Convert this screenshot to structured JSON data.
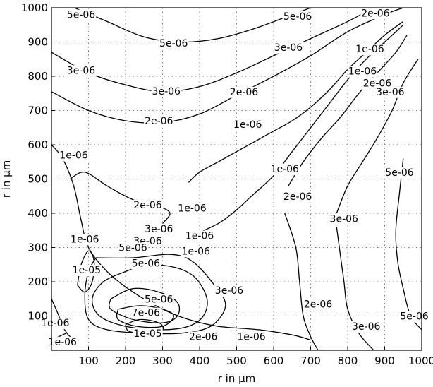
{
  "chart_data": {
    "type": "contour",
    "xlabel": "r in μm",
    "ylabel": "r in μm",
    "xlim": [
      0,
      1000
    ],
    "ylim": [
      0,
      1000
    ],
    "grid": true,
    "xticks": [
      100,
      200,
      300,
      400,
      500,
      600,
      700,
      800,
      900,
      1000
    ],
    "yticks": [
      100,
      200,
      300,
      400,
      500,
      600,
      700,
      800,
      900,
      1000
    ],
    "contours": [
      {
        "level": "5e-06",
        "points": [
          [
            62,
            1000
          ],
          [
            150,
            960
          ],
          [
            250,
            915
          ],
          [
            350,
            900
          ],
          [
            450,
            910
          ],
          [
            550,
            940
          ],
          [
            650,
            980
          ],
          [
            700,
            1000
          ]
        ]
      },
      {
        "level": "3e-06",
        "points": [
          [
            0,
            870
          ],
          [
            100,
            810
          ],
          [
            200,
            775
          ],
          [
            300,
            755
          ],
          [
            400,
            770
          ],
          [
            500,
            810
          ],
          [
            600,
            860
          ],
          [
            700,
            910
          ],
          [
            800,
            960
          ],
          [
            870,
            1000
          ]
        ]
      },
      {
        "level": "2e-06",
        "points": [
          [
            0,
            755
          ],
          [
            100,
            700
          ],
          [
            200,
            670
          ],
          [
            300,
            665
          ],
          [
            400,
            690
          ],
          [
            500,
            745
          ],
          [
            600,
            800
          ],
          [
            700,
            860
          ],
          [
            800,
            930
          ],
          [
            900,
            980
          ],
          [
            950,
            1000
          ]
        ]
      },
      {
        "level": "1e-06",
        "points": [
          [
            0,
            600
          ],
          [
            30,
            560
          ],
          [
            60,
            480
          ],
          [
            80,
            380
          ],
          [
            100,
            300
          ],
          [
            150,
            230
          ],
          [
            220,
            170
          ],
          [
            300,
            120
          ],
          [
            370,
            90
          ],
          [
            450,
            70
          ],
          [
            560,
            60
          ],
          [
            650,
            45
          ],
          [
            700,
            30
          ]
        ]
      },
      {
        "level": "1e-06",
        "points": [
          [
            370,
            490
          ],
          [
            400,
            520
          ],
          [
            450,
            550
          ],
          [
            500,
            580
          ],
          [
            550,
            610
          ],
          [
            600,
            640
          ],
          [
            650,
            670
          ],
          [
            700,
            710
          ],
          [
            750,
            760
          ],
          [
            800,
            820
          ],
          [
            850,
            870
          ],
          [
            900,
            920
          ],
          [
            950,
            960
          ]
        ]
      },
      {
        "level": "1e-06",
        "points": [
          [
            370,
            330
          ],
          [
            450,
            370
          ],
          [
            500,
            410
          ],
          [
            540,
            450
          ],
          [
            600,
            510
          ],
          [
            650,
            580
          ],
          [
            700,
            650
          ],
          [
            750,
            720
          ],
          [
            800,
            790
          ],
          [
            850,
            850
          ],
          [
            900,
            900
          ],
          [
            950,
            950
          ]
        ]
      },
      {
        "level": "2e-06",
        "points": [
          [
            50,
            500
          ],
          [
            90,
            520
          ],
          [
            150,
            480
          ],
          [
            220,
            440
          ],
          [
            290,
            420
          ],
          [
            320,
            400
          ],
          [
            300,
            370
          ]
        ]
      },
      {
        "level": "2e-06",
        "points": [
          [
            630,
            400
          ],
          [
            660,
            300
          ],
          [
            670,
            200
          ],
          [
            680,
            100
          ],
          [
            700,
            40
          ],
          [
            720,
            0
          ]
        ]
      },
      {
        "level": "2e-06",
        "points": [
          [
            640,
            480
          ],
          [
            680,
            550
          ],
          [
            730,
            620
          ],
          [
            780,
            680
          ],
          [
            830,
            750
          ],
          [
            880,
            810
          ],
          [
            930,
            870
          ],
          [
            960,
            920
          ]
        ]
      },
      {
        "level": "3e-06",
        "points": [
          [
            770,
            360
          ],
          [
            780,
            280
          ],
          [
            790,
            200
          ],
          [
            800,
            120
          ],
          [
            830,
            50
          ],
          [
            870,
            0
          ]
        ]
      },
      {
        "level": "3e-06",
        "points": [
          [
            770,
            400
          ],
          [
            800,
            480
          ],
          [
            840,
            550
          ],
          [
            880,
            620
          ],
          [
            920,
            700
          ],
          [
            950,
            780
          ],
          [
            990,
            850
          ]
        ]
      },
      {
        "level": "5e-06",
        "points": [
          [
            950,
            560
          ],
          [
            940,
            460
          ],
          [
            930,
            350
          ],
          [
            935,
            260
          ],
          [
            950,
            180
          ],
          [
            970,
            100
          ],
          [
            1000,
            60
          ]
        ]
      },
      {
        "level": "1e-05",
        "points": [
          [
            70,
            190
          ],
          [
            80,
            250
          ],
          [
            100,
            290
          ],
          [
            115,
            260
          ],
          [
            110,
            200
          ],
          [
            90,
            170
          ],
          [
            70,
            190
          ]
        ]
      },
      {
        "level": "5e-06",
        "points": [
          [
            160,
            150
          ],
          [
            220,
            180
          ],
          [
            290,
            170
          ],
          [
            340,
            140
          ],
          [
            340,
            100
          ],
          [
            300,
            80
          ],
          [
            220,
            90
          ],
          [
            160,
            120
          ],
          [
            160,
            150
          ]
        ]
      },
      {
        "level": "7e-06",
        "points": [
          [
            180,
            120
          ],
          [
            240,
            130
          ],
          [
            300,
            120
          ],
          [
            330,
            100
          ],
          [
            300,
            70
          ],
          [
            230,
            70
          ],
          [
            180,
            90
          ],
          [
            180,
            120
          ]
        ]
      },
      {
        "level": "1e-05",
        "points": [
          [
            200,
            75
          ],
          [
            240,
            90
          ],
          [
            290,
            80
          ],
          [
            300,
            60
          ],
          [
            260,
            50
          ],
          [
            210,
            55
          ],
          [
            200,
            75
          ]
        ]
      },
      {
        "level": "3e-06",
        "points": [
          [
            200,
            230
          ],
          [
            260,
            250
          ],
          [
            340,
            240
          ],
          [
            390,
            210
          ],
          [
            420,
            150
          ],
          [
            410,
            100
          ],
          [
            370,
            70
          ],
          [
            300,
            60
          ],
          [
            200,
            70
          ],
          [
            130,
            100
          ],
          [
            110,
            150
          ],
          [
            140,
            200
          ],
          [
            200,
            230
          ]
        ]
      },
      {
        "level": "2e-06",
        "points": [
          [
            120,
            270
          ],
          [
            220,
            270
          ],
          [
            320,
            280
          ],
          [
            380,
            260
          ],
          [
            440,
            190
          ],
          [
            470,
            130
          ],
          [
            430,
            70
          ],
          [
            350,
            50
          ],
          [
            250,
            50
          ],
          [
            150,
            60
          ],
          [
            100,
            90
          ],
          [
            90,
            160
          ],
          [
            100,
            230
          ],
          [
            120,
            270
          ]
        ]
      },
      {
        "level": "1e-06",
        "points": [
          [
            0,
            150
          ],
          [
            20,
            100
          ],
          [
            30,
            70
          ],
          [
            50,
            40
          ],
          [
            70,
            30
          ]
        ]
      },
      {
        "level": "1e-06",
        "points": [
          [
            0,
            30
          ],
          [
            20,
            40
          ],
          [
            40,
            50
          ]
        ]
      }
    ],
    "labels": [
      {
        "text": "5e-06",
        "x": 80,
        "y": 980
      },
      {
        "text": "5e-06",
        "x": 330,
        "y": 897
      },
      {
        "text": "5e-06",
        "x": 665,
        "y": 975
      },
      {
        "text": "2e-06",
        "x": 875,
        "y": 985
      },
      {
        "text": "3e-06",
        "x": 80,
        "y": 818
      },
      {
        "text": "3e-06",
        "x": 310,
        "y": 757
      },
      {
        "text": "3e-06",
        "x": 640,
        "y": 885
      },
      {
        "text": "1e-06",
        "x": 860,
        "y": 880
      },
      {
        "text": "2e-06",
        "x": 290,
        "y": 670
      },
      {
        "text": "2e-06",
        "x": 520,
        "y": 755
      },
      {
        "text": "1e-06",
        "x": 840,
        "y": 815
      },
      {
        "text": "2e-06",
        "x": 880,
        "y": 780
      },
      {
        "text": "3e-06",
        "x": 915,
        "y": 755
      },
      {
        "text": "1e-06",
        "x": 530,
        "y": 660
      },
      {
        "text": "1e-06",
        "x": 630,
        "y": 530
      },
      {
        "text": "2e-06",
        "x": 665,
        "y": 450
      },
      {
        "text": "3e-06",
        "x": 790,
        "y": 385
      },
      {
        "text": "5e-06",
        "x": 940,
        "y": 520
      },
      {
        "text": "1e-06",
        "x": 60,
        "y": 570
      },
      {
        "text": "2e-06",
        "x": 260,
        "y": 425
      },
      {
        "text": "3e-06",
        "x": 290,
        "y": 355
      },
      {
        "text": "3e-06",
        "x": 260,
        "y": 320
      },
      {
        "text": "1e-06",
        "x": 380,
        "y": 415
      },
      {
        "text": "1e-06",
        "x": 400,
        "y": 335
      },
      {
        "text": "1e-06",
        "x": 90,
        "y": 325
      },
      {
        "text": "5e-06",
        "x": 220,
        "y": 300
      },
      {
        "text": "1e-06",
        "x": 390,
        "y": 290
      },
      {
        "text": "5e-06",
        "x": 255,
        "y": 255
      },
      {
        "text": "1e-05",
        "x": 95,
        "y": 235
      },
      {
        "text": "3e-06",
        "x": 480,
        "y": 175
      },
      {
        "text": "5e-06",
        "x": 290,
        "y": 150
      },
      {
        "text": "7e-06",
        "x": 255,
        "y": 110
      },
      {
        "text": "1e-05",
        "x": 260,
        "y": 50
      },
      {
        "text": "2e-06",
        "x": 410,
        "y": 40
      },
      {
        "text": "1e-06",
        "x": 540,
        "y": 40
      },
      {
        "text": "2e-06",
        "x": 720,
        "y": 135
      },
      {
        "text": "3e-06",
        "x": 850,
        "y": 70
      },
      {
        "text": "5e-06",
        "x": 980,
        "y": 100
      },
      {
        "text": "1e-06",
        "x": 10,
        "y": 80
      },
      {
        "text": "1e-06",
        "x": 30,
        "y": 25
      }
    ]
  }
}
